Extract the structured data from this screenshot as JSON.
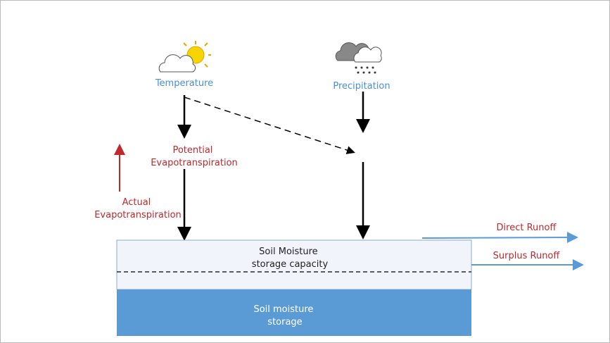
{
  "labels": {
    "temperature": "Temperature",
    "precipitation": "Precipitation",
    "potential_et": [
      "Potential",
      "Evapotranspiration"
    ],
    "actual_et": [
      "Actual",
      "Evapotranspiration"
    ],
    "direct_runoff": "Direct Runoff",
    "surplus_runoff": "Surplus Runoff",
    "storage_capacity": [
      "Soil Moisture",
      "storage capacity"
    ],
    "storage": [
      "Soil moisture",
      "storage"
    ]
  }
}
